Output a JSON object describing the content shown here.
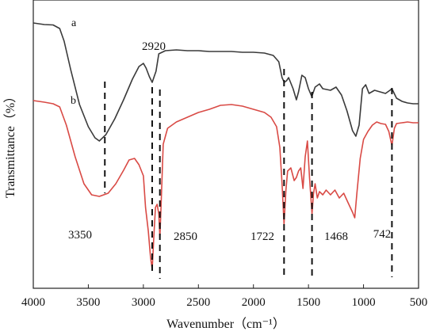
{
  "chart_data": {
    "type": "line",
    "xlabel": "Wavenumber（cm⁻¹）",
    "ylabel": "Transmittance（%）",
    "xlim": [
      4000,
      500
    ],
    "x_reversed": true,
    "x_ticks": [
      4000,
      3500,
      3000,
      2500,
      2000,
      1500,
      1000,
      500
    ],
    "y_ticks_shown": false,
    "grid": false,
    "legend": "none",
    "series": [
      {
        "name": "a",
        "color": "#3a3a3a",
        "points": [
          [
            4000,
            29
          ],
          [
            3900,
            31
          ],
          [
            3820,
            31.5
          ],
          [
            3760,
            36
          ],
          [
            3720,
            52
          ],
          [
            3660,
            88
          ],
          [
            3580,
            132
          ],
          [
            3500,
            160
          ],
          [
            3440,
            174
          ],
          [
            3400,
            178
          ],
          [
            3340,
            170
          ],
          [
            3260,
            150
          ],
          [
            3180,
            126
          ],
          [
            3100,
            100
          ],
          [
            3040,
            84
          ],
          [
            3000,
            80
          ],
          [
            2975,
            86
          ],
          [
            2945,
            97
          ],
          [
            2920,
            104
          ],
          [
            2900,
            96
          ],
          [
            2885,
            90
          ],
          [
            2860,
            68
          ],
          [
            2800,
            64
          ],
          [
            2700,
            63
          ],
          [
            2600,
            64
          ],
          [
            2500,
            64
          ],
          [
            2400,
            65
          ],
          [
            2300,
            65
          ],
          [
            2200,
            65
          ],
          [
            2100,
            66
          ],
          [
            2000,
            66
          ],
          [
            1900,
            67
          ],
          [
            1820,
            70
          ],
          [
            1770,
            78
          ],
          [
            1740,
            98
          ],
          [
            1720,
            104
          ],
          [
            1700,
            102
          ],
          [
            1680,
            98
          ],
          [
            1640,
            112
          ],
          [
            1610,
            126
          ],
          [
            1590,
            116
          ],
          [
            1560,
            95
          ],
          [
            1530,
            98
          ],
          [
            1500,
            112
          ],
          [
            1470,
            122
          ],
          [
            1440,
            110
          ],
          [
            1400,
            106
          ],
          [
            1370,
            112
          ],
          [
            1300,
            114
          ],
          [
            1250,
            110
          ],
          [
            1200,
            120
          ],
          [
            1150,
            140
          ],
          [
            1100,
            165
          ],
          [
            1070,
            172
          ],
          [
            1040,
            158
          ],
          [
            1010,
            112
          ],
          [
            980,
            107
          ],
          [
            950,
            118
          ],
          [
            900,
            114
          ],
          [
            850,
            116
          ],
          [
            800,
            118
          ],
          [
            760,
            114
          ],
          [
            742,
            112
          ],
          [
            700,
            124
          ],
          [
            650,
            128
          ],
          [
            600,
            130
          ],
          [
            550,
            131
          ],
          [
            500,
            131
          ]
        ]
      },
      {
        "name": "b",
        "color": "#d94a45",
        "points": [
          [
            4000,
            127
          ],
          [
            3900,
            129
          ],
          [
            3820,
            131
          ],
          [
            3760,
            135
          ],
          [
            3700,
            158
          ],
          [
            3620,
            198
          ],
          [
            3540,
            232
          ],
          [
            3470,
            246
          ],
          [
            3400,
            248
          ],
          [
            3320,
            244
          ],
          [
            3250,
            232
          ],
          [
            3180,
            215
          ],
          [
            3130,
            202
          ],
          [
            3080,
            200
          ],
          [
            3040,
            208
          ],
          [
            3000,
            222
          ],
          [
            2980,
            262
          ],
          [
            2955,
            292
          ],
          [
            2935,
            325
          ],
          [
            2920,
            340
          ],
          [
            2905,
            300
          ],
          [
            2890,
            262
          ],
          [
            2875,
            258
          ],
          [
            2860,
            270
          ],
          [
            2850,
            300
          ],
          [
            2840,
            262
          ],
          [
            2820,
            182
          ],
          [
            2780,
            162
          ],
          [
            2700,
            154
          ],
          [
            2600,
            148
          ],
          [
            2500,
            142
          ],
          [
            2400,
            138
          ],
          [
            2300,
            133
          ],
          [
            2200,
            132
          ],
          [
            2100,
            134
          ],
          [
            2000,
            138
          ],
          [
            1900,
            142
          ],
          [
            1840,
            148
          ],
          [
            1790,
            160
          ],
          [
            1760,
            186
          ],
          [
            1740,
            232
          ],
          [
            1722,
            283
          ],
          [
            1705,
            240
          ],
          [
            1690,
            216
          ],
          [
            1660,
            212
          ],
          [
            1630,
            228
          ],
          [
            1610,
            224
          ],
          [
            1590,
            216
          ],
          [
            1570,
            212
          ],
          [
            1550,
            238
          ],
          [
            1530,
            198
          ],
          [
            1510,
            178
          ],
          [
            1490,
            225
          ],
          [
            1468,
            270
          ],
          [
            1455,
            245
          ],
          [
            1440,
            232
          ],
          [
            1420,
            250
          ],
          [
            1400,
            242
          ],
          [
            1370,
            246
          ],
          [
            1340,
            240
          ],
          [
            1300,
            246
          ],
          [
            1260,
            240
          ],
          [
            1220,
            250
          ],
          [
            1180,
            244
          ],
          [
            1140,
            256
          ],
          [
            1100,
            268
          ],
          [
            1080,
            275
          ],
          [
            1060,
            244
          ],
          [
            1030,
            200
          ],
          [
            1000,
            176
          ],
          [
            960,
            166
          ],
          [
            920,
            158
          ],
          [
            880,
            154
          ],
          [
            842,
            156
          ],
          [
            800,
            157
          ],
          [
            770,
            166
          ],
          [
            742,
            184
          ],
          [
            720,
            162
          ],
          [
            700,
            156
          ],
          [
            650,
            155
          ],
          [
            600,
            154
          ],
          [
            550,
            155
          ],
          [
            500,
            155
          ]
        ]
      }
    ],
    "series_labels": [
      {
        "text": "a",
        "series": "a"
      },
      {
        "text": "b",
        "series": "b"
      }
    ],
    "annotations": [
      {
        "x": 3350,
        "label": "3350"
      },
      {
        "x": 2920,
        "label": "2920"
      },
      {
        "x": 2850,
        "label": "2850"
      },
      {
        "x": 1722,
        "label": "1722"
      },
      {
        "x": 1468,
        "label": "1468"
      },
      {
        "x": 742,
        "label": "742"
      }
    ]
  }
}
